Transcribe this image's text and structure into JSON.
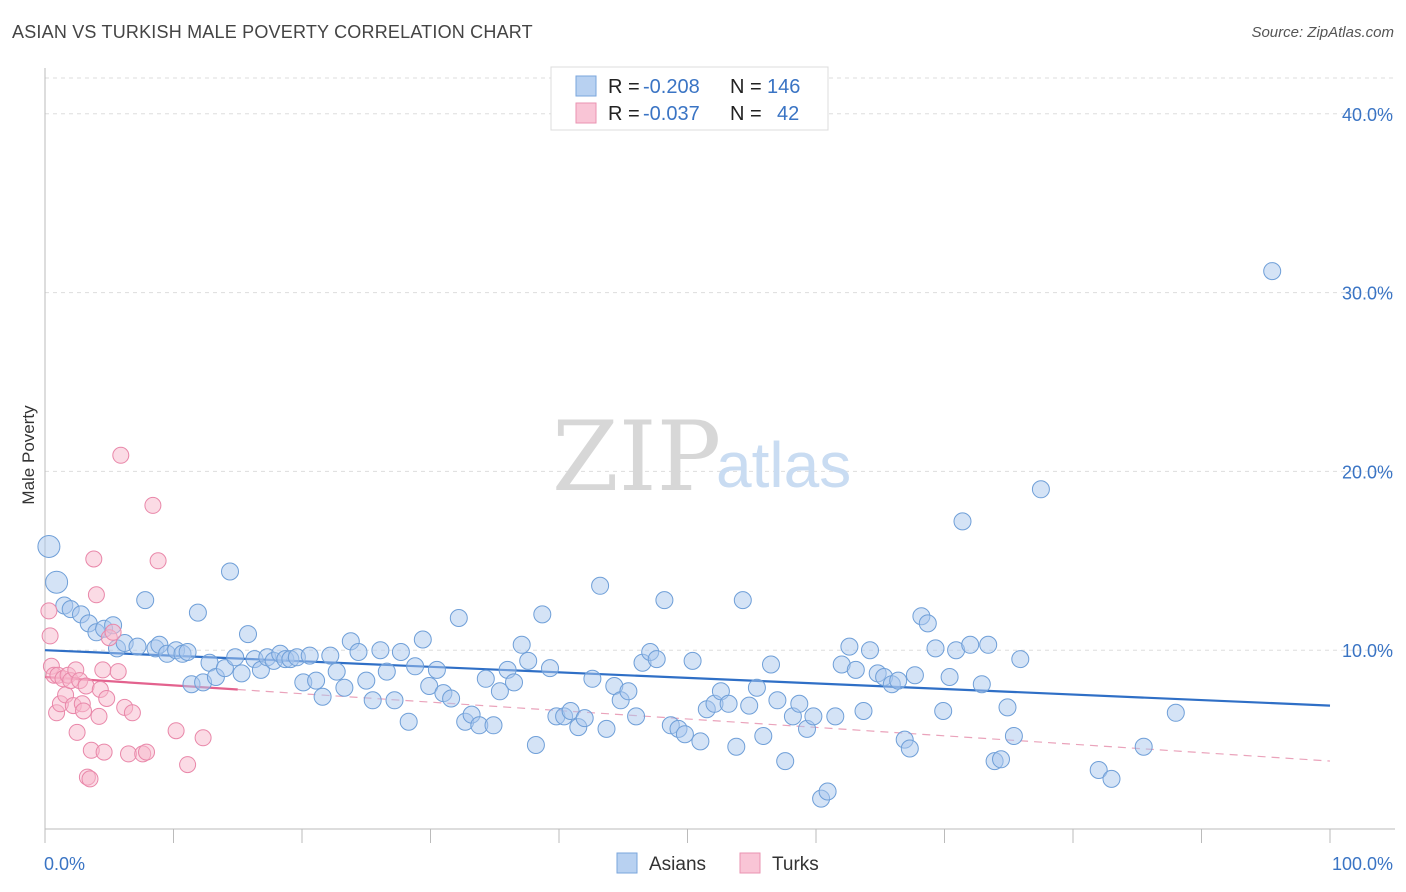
{
  "title": "ASIAN VS TURKISH MALE POVERTY CORRELATION CHART",
  "source": "Source: ZipAtlas.com",
  "watermark": {
    "zip": "ZIP",
    "atlas": "atlas"
  },
  "chart_data": {
    "type": "scatter",
    "ylabel": "Male Poverty",
    "xlim": [
      0,
      100
    ],
    "ylim": [
      0,
      42
    ],
    "x_tick_labels": [
      "0.0%",
      "100.0%"
    ],
    "y_ticks": [
      10,
      20,
      30,
      40
    ],
    "y_tick_labels": [
      "10.0%",
      "20.0%",
      "30.0%",
      "40.0%"
    ],
    "grid": true,
    "legend": {
      "placement": "top-center",
      "rows": [
        {
          "r_label": "R =",
          "r": "-0.208",
          "n_label": "N =",
          "n": "146"
        },
        {
          "r_label": "R =",
          "r": "-0.037",
          "n_label": "N =",
          "n": "42"
        }
      ]
    },
    "bottom_legend": [
      "Asians",
      "Turks"
    ],
    "series": [
      {
        "name": "Asians",
        "color": "#a9c8ee",
        "stroke": "#6f9fd8",
        "trend": {
          "x": [
            0,
            100
          ],
          "y": [
            10.0,
            6.9
          ],
          "color": "#2f6fc6"
        },
        "points": [
          [
            0.3,
            15.8
          ],
          [
            0.9,
            13.8
          ],
          [
            1.5,
            12.5
          ],
          [
            2.0,
            12.3
          ],
          [
            2.8,
            12.0
          ],
          [
            3.4,
            11.5
          ],
          [
            4.0,
            11.0
          ],
          [
            4.6,
            11.2
          ],
          [
            5.3,
            11.4
          ],
          [
            5.6,
            10.1
          ],
          [
            6.2,
            10.4
          ],
          [
            7.2,
            10.2
          ],
          [
            7.8,
            12.8
          ],
          [
            8.6,
            10.1
          ],
          [
            8.9,
            10.3
          ],
          [
            9.5,
            9.8
          ],
          [
            10.2,
            10.0
          ],
          [
            10.7,
            9.8
          ],
          [
            11.1,
            9.9
          ],
          [
            11.4,
            8.1
          ],
          [
            11.9,
            12.1
          ],
          [
            12.3,
            8.2
          ],
          [
            12.8,
            9.3
          ],
          [
            13.3,
            8.5
          ],
          [
            14.0,
            9.0
          ],
          [
            14.4,
            14.4
          ],
          [
            14.8,
            9.6
          ],
          [
            15.3,
            8.7
          ],
          [
            15.8,
            10.9
          ],
          [
            16.3,
            9.5
          ],
          [
            16.8,
            8.9
          ],
          [
            17.3,
            9.6
          ],
          [
            17.8,
            9.4
          ],
          [
            18.3,
            9.8
          ],
          [
            18.7,
            9.5
          ],
          [
            19.1,
            9.5
          ],
          [
            19.6,
            9.6
          ],
          [
            20.1,
            8.2
          ],
          [
            20.6,
            9.7
          ],
          [
            21.1,
            8.3
          ],
          [
            21.6,
            7.4
          ],
          [
            22.2,
            9.7
          ],
          [
            22.7,
            8.8
          ],
          [
            23.3,
            7.9
          ],
          [
            23.8,
            10.5
          ],
          [
            24.4,
            9.9
          ],
          [
            25.0,
            8.3
          ],
          [
            25.5,
            7.2
          ],
          [
            26.1,
            10.0
          ],
          [
            26.6,
            8.8
          ],
          [
            27.2,
            7.2
          ],
          [
            27.7,
            9.9
          ],
          [
            28.3,
            6.0
          ],
          [
            28.8,
            9.1
          ],
          [
            29.4,
            10.6
          ],
          [
            29.9,
            8.0
          ],
          [
            30.5,
            8.9
          ],
          [
            31.0,
            7.6
          ],
          [
            31.6,
            7.3
          ],
          [
            32.2,
            11.8
          ],
          [
            32.7,
            6.0
          ],
          [
            33.2,
            6.4
          ],
          [
            33.8,
            5.8
          ],
          [
            34.3,
            8.4
          ],
          [
            34.9,
            5.8
          ],
          [
            35.4,
            7.7
          ],
          [
            36.0,
            8.9
          ],
          [
            36.5,
            8.2
          ],
          [
            37.1,
            10.3
          ],
          [
            37.6,
            9.4
          ],
          [
            38.2,
            4.7
          ],
          [
            38.7,
            12.0
          ],
          [
            39.3,
            9.0
          ],
          [
            39.8,
            6.3
          ],
          [
            40.4,
            6.3
          ],
          [
            40.9,
            6.6
          ],
          [
            41.5,
            5.7
          ],
          [
            42.0,
            6.2
          ],
          [
            42.6,
            8.4
          ],
          [
            43.2,
            13.6
          ],
          [
            43.7,
            5.6
          ],
          [
            44.3,
            8.0
          ],
          [
            44.8,
            7.2
          ],
          [
            45.4,
            7.7
          ],
          [
            46.0,
            6.3
          ],
          [
            46.5,
            9.3
          ],
          [
            47.1,
            9.9
          ],
          [
            47.6,
            9.5
          ],
          [
            48.2,
            12.8
          ],
          [
            48.7,
            5.8
          ],
          [
            49.3,
            5.6
          ],
          [
            49.8,
            5.3
          ],
          [
            50.4,
            9.4
          ],
          [
            51.0,
            4.9
          ],
          [
            51.5,
            6.7
          ],
          [
            52.1,
            7.0
          ],
          [
            52.6,
            7.7
          ],
          [
            53.2,
            7.0
          ],
          [
            53.8,
            4.6
          ],
          [
            54.3,
            12.8
          ],
          [
            54.8,
            6.9
          ],
          [
            55.4,
            7.9
          ],
          [
            55.9,
            5.2
          ],
          [
            56.5,
            9.2
          ],
          [
            57.0,
            7.2
          ],
          [
            57.6,
            3.8
          ],
          [
            58.2,
            6.3
          ],
          [
            58.7,
            7.0
          ],
          [
            59.3,
            5.6
          ],
          [
            59.8,
            6.3
          ],
          [
            60.4,
            1.7
          ],
          [
            60.9,
            2.1
          ],
          [
            61.5,
            6.3
          ],
          [
            62.0,
            9.2
          ],
          [
            62.6,
            10.2
          ],
          [
            63.1,
            8.9
          ],
          [
            63.7,
            6.6
          ],
          [
            64.2,
            10.0
          ],
          [
            64.8,
            8.7
          ],
          [
            65.3,
            8.5
          ],
          [
            65.9,
            8.1
          ],
          [
            66.4,
            8.3
          ],
          [
            66.9,
            5.0
          ],
          [
            67.3,
            4.5
          ],
          [
            67.7,
            8.6
          ],
          [
            68.2,
            11.9
          ],
          [
            68.7,
            11.5
          ],
          [
            69.3,
            10.1
          ],
          [
            69.9,
            6.6
          ],
          [
            70.4,
            8.5
          ],
          [
            70.9,
            10.0
          ],
          [
            71.4,
            17.2
          ],
          [
            72.0,
            10.3
          ],
          [
            72.9,
            8.1
          ],
          [
            73.4,
            10.3
          ],
          [
            73.9,
            3.8
          ],
          [
            74.4,
            3.9
          ],
          [
            74.9,
            6.8
          ],
          [
            75.4,
            5.2
          ],
          [
            75.9,
            9.5
          ],
          [
            77.5,
            19.0
          ],
          [
            82.0,
            3.3
          ],
          [
            83.0,
            2.8
          ],
          [
            95.5,
            31.2
          ],
          [
            85.5,
            4.6
          ],
          [
            88.0,
            6.5
          ]
        ]
      },
      {
        "name": "Turks",
        "color": "#f7b7cc",
        "stroke": "#e987a9",
        "trend": {
          "x": [
            0,
            15
          ],
          "y": [
            8.5,
            7.8
          ],
          "color": "#e3628e"
        },
        "trend_extended": {
          "x": [
            15,
            100
          ],
          "y": [
            7.8,
            3.8
          ]
        },
        "points": [
          [
            0.3,
            12.2
          ],
          [
            0.4,
            10.8
          ],
          [
            0.5,
            9.1
          ],
          [
            0.7,
            8.6
          ],
          [
            0.9,
            6.5
          ],
          [
            1.0,
            8.6
          ],
          [
            1.2,
            7.0
          ],
          [
            1.4,
            8.4
          ],
          [
            1.6,
            7.5
          ],
          [
            1.8,
            8.6
          ],
          [
            2.0,
            8.3
          ],
          [
            2.2,
            6.9
          ],
          [
            2.4,
            8.9
          ],
          [
            2.5,
            5.4
          ],
          [
            2.7,
            8.3
          ],
          [
            2.9,
            7.0
          ],
          [
            3.0,
            6.6
          ],
          [
            3.2,
            8.0
          ],
          [
            3.3,
            2.9
          ],
          [
            3.5,
            2.8
          ],
          [
            3.6,
            4.4
          ],
          [
            3.8,
            15.1
          ],
          [
            4.0,
            13.1
          ],
          [
            4.2,
            6.3
          ],
          [
            4.3,
            7.8
          ],
          [
            4.5,
            8.9
          ],
          [
            4.6,
            4.3
          ],
          [
            4.8,
            7.3
          ],
          [
            5.0,
            10.7
          ],
          [
            5.3,
            11.0
          ],
          [
            5.7,
            8.8
          ],
          [
            5.9,
            20.9
          ],
          [
            6.2,
            6.8
          ],
          [
            6.5,
            4.2
          ],
          [
            6.8,
            6.5
          ],
          [
            7.6,
            4.2
          ],
          [
            7.9,
            4.3
          ],
          [
            8.4,
            18.1
          ],
          [
            8.8,
            15.0
          ],
          [
            10.2,
            5.5
          ],
          [
            11.1,
            3.6
          ],
          [
            12.3,
            5.1
          ]
        ]
      }
    ]
  }
}
